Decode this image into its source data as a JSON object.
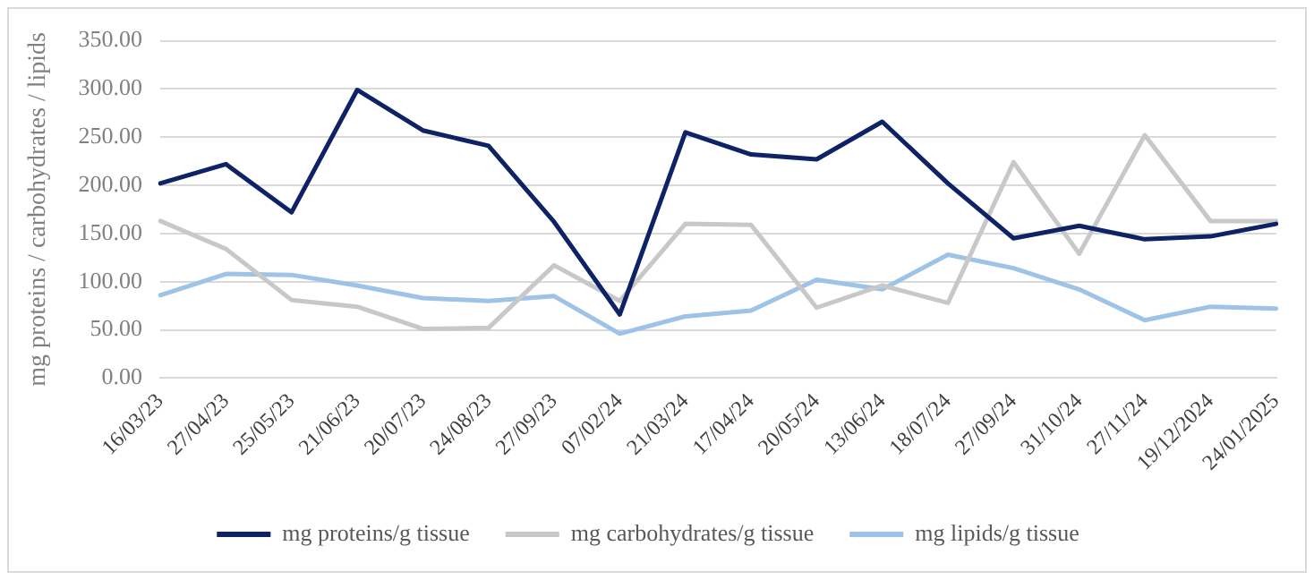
{
  "chart_data": {
    "type": "line",
    "ylabel": "mg proteins / carbohydrates / lipids",
    "categories": [
      "16/03/23",
      "27/04/23",
      "25/05/23",
      "21/06/23",
      "20/07/23",
      "24/08/23",
      "27/09/23",
      "07/02/24",
      "21/03/24",
      "17/04/24",
      "20/05/24",
      "13/06/24",
      "18/07/24",
      "27/09/24",
      "31/10/24",
      "27/11/24",
      "19/12/2024",
      "24/01/2025"
    ],
    "series": [
      {
        "name": "mg proteins/g tissue",
        "color": "#0e2266",
        "values": [
          202,
          222,
          172,
          299,
          257,
          241,
          162,
          66,
          255,
          232,
          227,
          266,
          202,
          145,
          158,
          144,
          147,
          160
        ]
      },
      {
        "name": "mg carbohydrates/g tissue",
        "color": "#c8c8c8",
        "values": [
          163,
          134,
          81,
          74,
          51,
          52,
          117,
          80,
          160,
          159,
          73,
          96,
          78,
          224,
          129,
          252,
          163,
          163
        ]
      },
      {
        "name": "mg lipids/g tissue",
        "color": "#9dc3e6",
        "values": [
          86,
          108,
          107,
          96,
          83,
          80,
          85,
          46,
          64,
          70,
          102,
          92,
          128,
          114,
          92,
          60,
          74,
          72
        ]
      }
    ],
    "ylim": [
      0,
      350
    ],
    "yticks": [
      {
        "value": 0,
        "label": "0.00"
      },
      {
        "value": 50,
        "label": "50.00"
      },
      {
        "value": 100,
        "label": "100.00"
      },
      {
        "value": 150,
        "label": "150.00"
      },
      {
        "value": 200,
        "label": "200.00"
      },
      {
        "value": 250,
        "label": "250.00"
      },
      {
        "value": 300,
        "label": "300.00"
      },
      {
        "value": 350,
        "label": "350.00"
      }
    ],
    "grid": "y",
    "legend": "bottom",
    "marker": "none",
    "line_style": "solid"
  }
}
